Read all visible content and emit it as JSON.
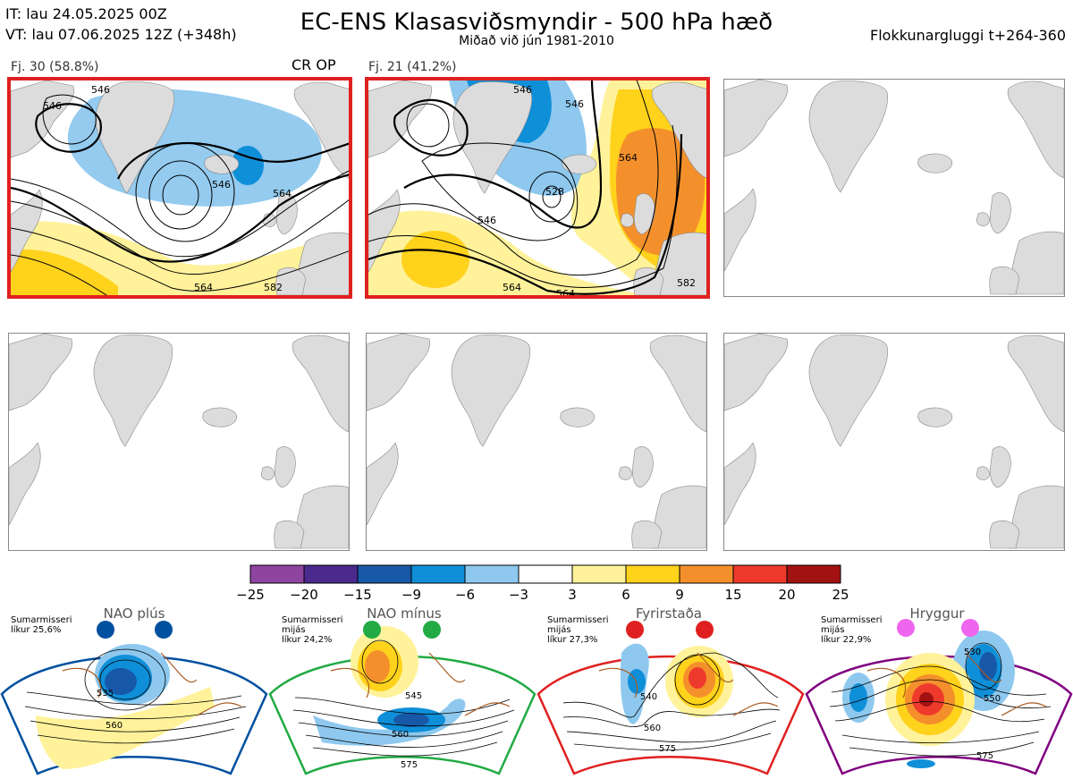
{
  "header": {
    "init_time": "IT: lau 24.05.2025 00Z",
    "valid_time": "VT: lau 07.06.2025 12Z  (+348h)",
    "title": "EC-ENS Klasasviðsmyndir - 500 hPa hæð",
    "subtitle": "Miðað við jún 1981-2010",
    "window": "Flokkunargluggi t+264-360"
  },
  "panels": [
    {
      "label": "Fj. 30 (58.8%)",
      "tag": "CR OP",
      "selected": true,
      "contour_labels": [
        "546",
        "546",
        "564",
        "546",
        "564",
        "582"
      ]
    },
    {
      "label": "Fj. 21 (41.2%)",
      "tag": "",
      "selected": true,
      "contour_labels": [
        "546",
        "546",
        "564",
        "564",
        "564",
        "546",
        "528",
        "582"
      ]
    },
    {
      "label": "",
      "tag": "",
      "selected": false,
      "contour_labels": []
    },
    {
      "label": "",
      "tag": "",
      "selected": false,
      "contour_labels": []
    },
    {
      "label": "",
      "tag": "",
      "selected": false,
      "contour_labels": []
    },
    {
      "label": "",
      "tag": "",
      "selected": false,
      "contour_labels": []
    }
  ],
  "colorbar": {
    "ticks": [
      "−25",
      "−20",
      "−15",
      "−9",
      "−6",
      "−3",
      "3",
      "6",
      "9",
      "15",
      "20",
      "25"
    ],
    "colors": [
      "#8e44a0",
      "#4b2a8e",
      "#1858a8",
      "#0f8fd8",
      "#8ec8ee",
      "#ffffff",
      "#fff29a",
      "#ffd21c",
      "#f4902c",
      "#ee3a2c",
      "#a31212"
    ]
  },
  "regimes": [
    {
      "name": "NAO plús",
      "season": "Sumarmisseri",
      "note2": "",
      "prob": "líkur 25,6%",
      "color": "#0050a0",
      "contour_labels": [
        "535",
        "560"
      ]
    },
    {
      "name": "NAO mínus",
      "season": "Sumarmisseri",
      "note2": "mijás",
      "prob": "líkur 24,2%",
      "color": "#22aa44",
      "contour_labels": [
        "545",
        "560",
        "575"
      ]
    },
    {
      "name": "Fyrirstaða",
      "season": "Sumarmisseri",
      "note2": "mijás",
      "prob": "líkur 27,3%",
      "color": "#e02020",
      "contour_labels": [
        "540",
        "560",
        "575"
      ]
    },
    {
      "name": "Hryggur",
      "season": "Sumarmisseri",
      "note2": "mijás",
      "prob": "líkur 22,9%",
      "color": "#800080",
      "contour_labels": [
        "530",
        "550",
        "575"
      ]
    }
  ]
}
